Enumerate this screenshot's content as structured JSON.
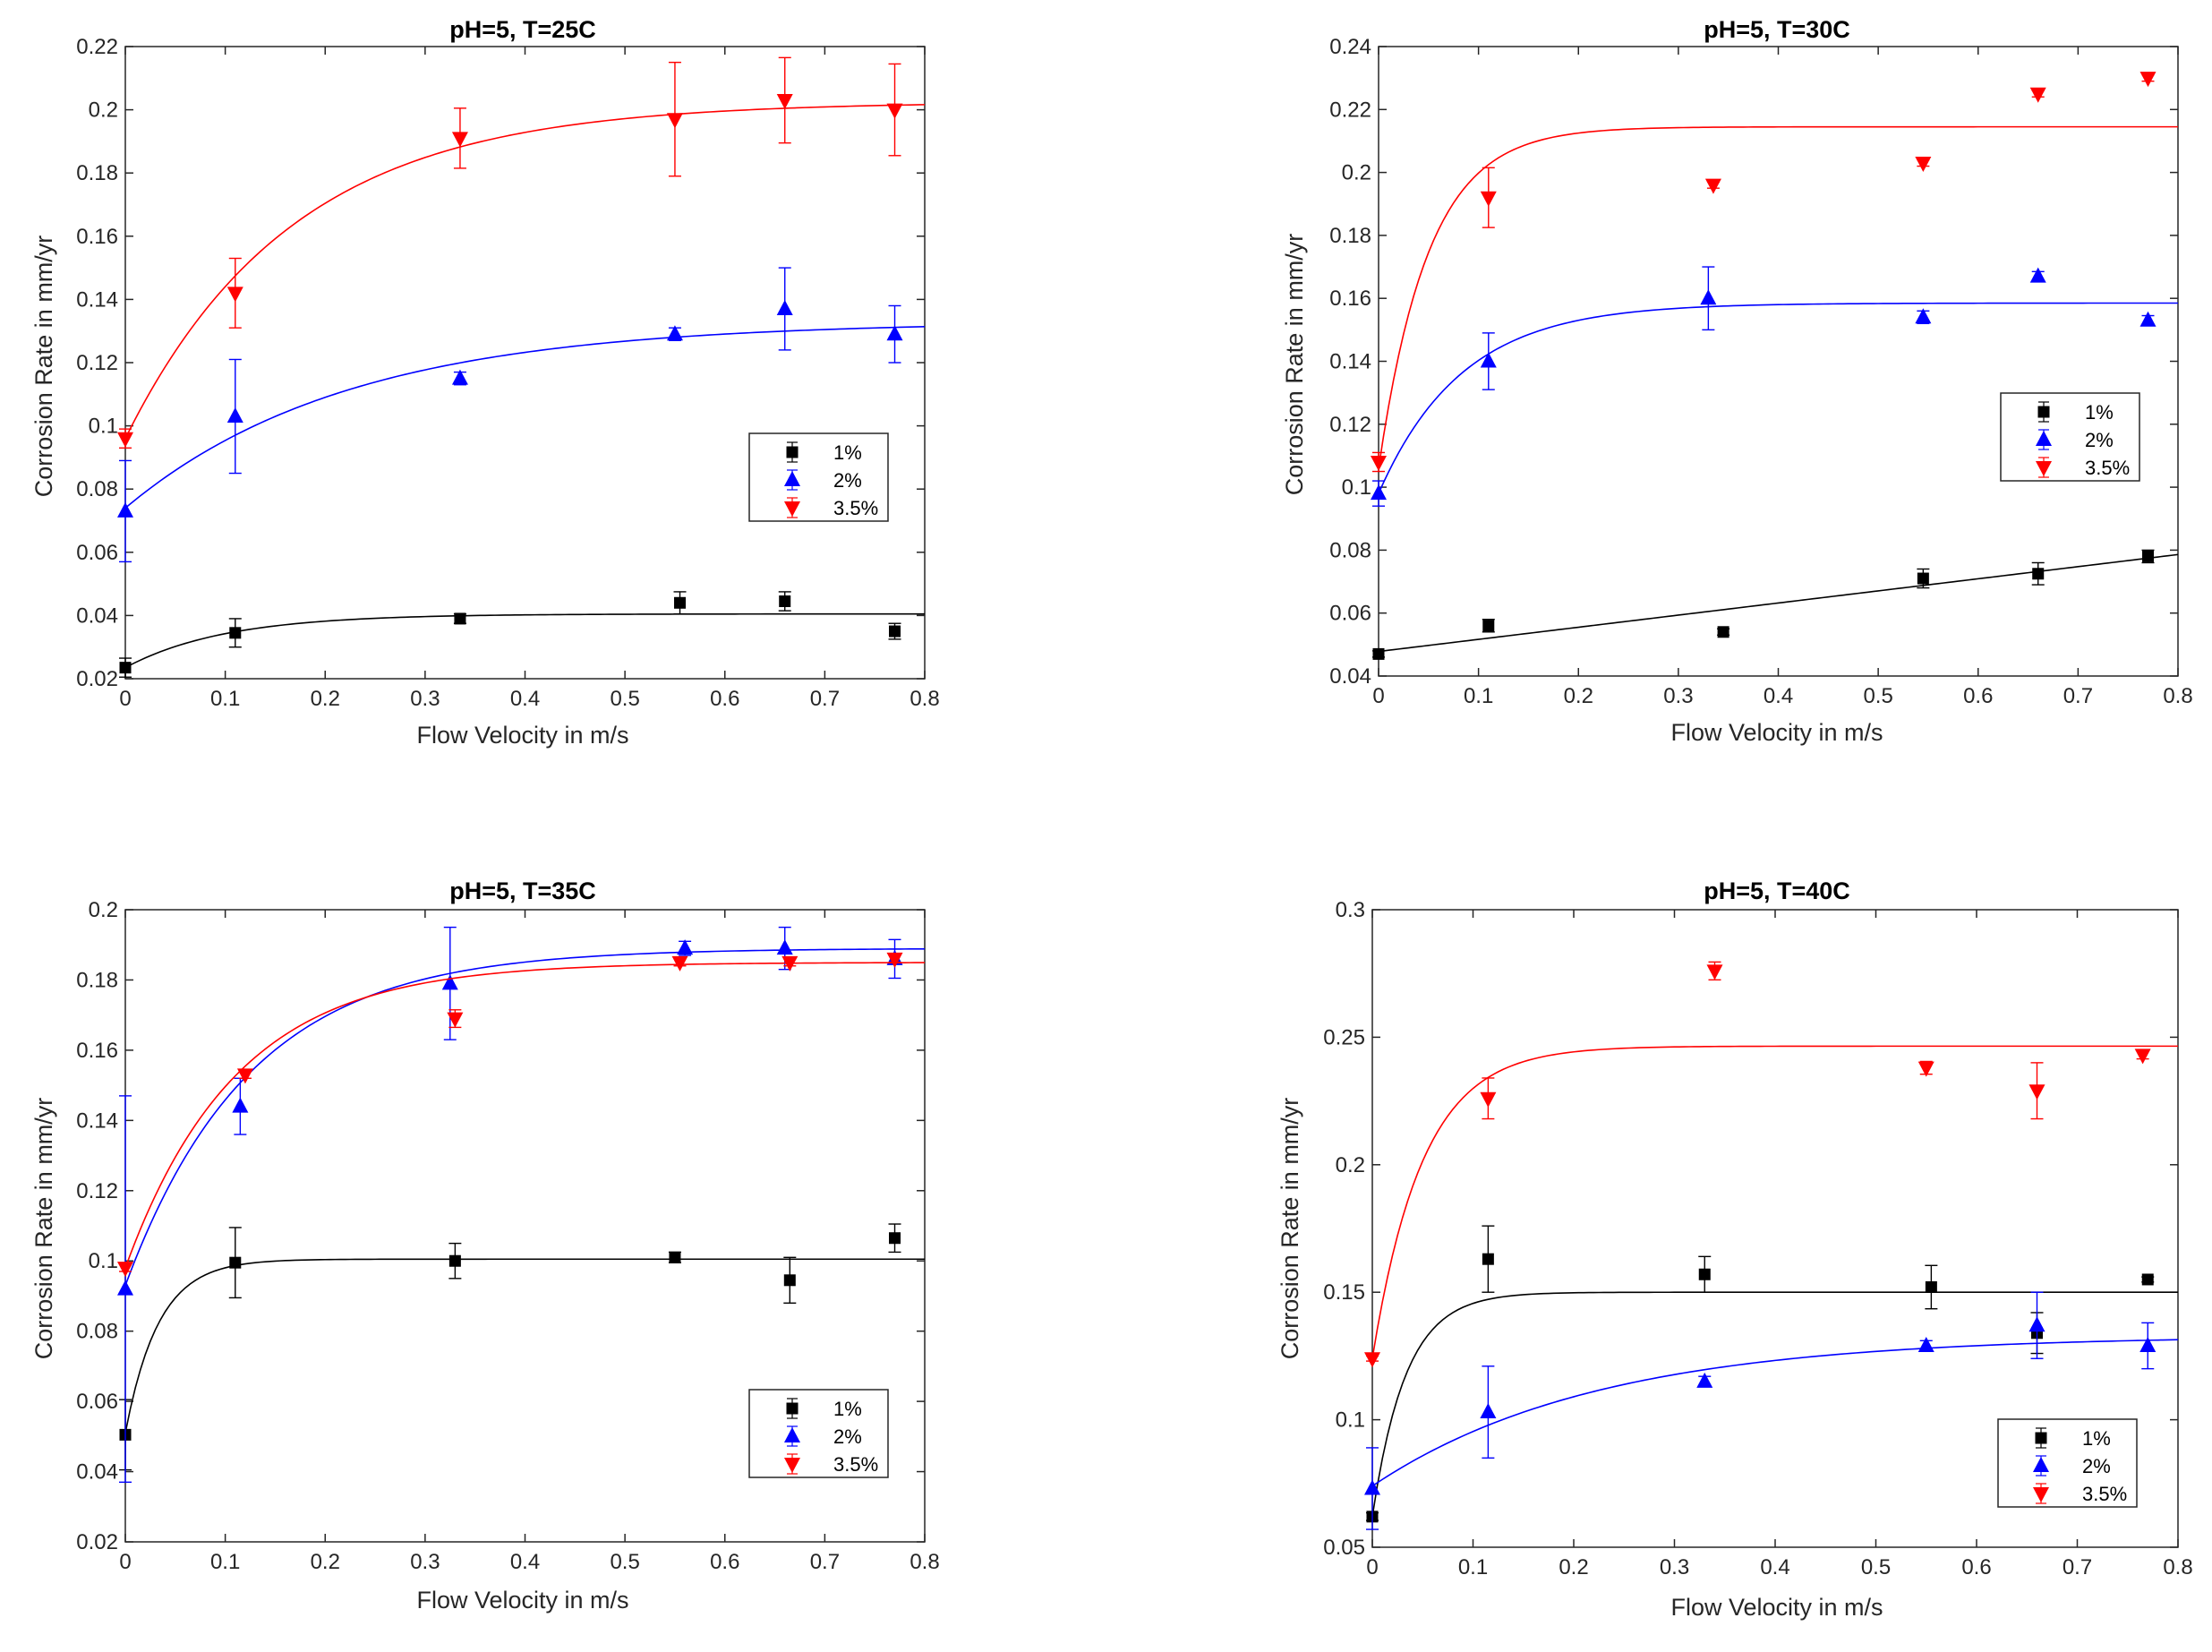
{
  "chart_data": [
    {
      "type": "scatter",
      "title": "pH=5, T=25C",
      "xlabel": "Flow Velocity in m/s",
      "ylabel": "Corrosion Rate in mm/yr",
      "xlim": [
        0,
        0.8
      ],
      "ylim": [
        0.02,
        0.22
      ],
      "xticks": [
        0,
        0.1,
        0.2,
        0.3,
        0.4,
        0.5,
        0.6,
        0.7,
        0.8
      ],
      "yticks": [
        0.02,
        0.04,
        0.06,
        0.08,
        0.1,
        0.12,
        0.14,
        0.16,
        0.18,
        0.2,
        0.22
      ],
      "xtick_labels": [
        "0",
        "0.1",
        "0.2",
        "0.3",
        "0.4",
        "0.5",
        "0.6",
        "0.7",
        "0.8"
      ],
      "ytick_labels": [
        "0.02",
        "0.04",
        "0.06",
        "0.08",
        "0.1",
        "0.12",
        "0.14",
        "0.16",
        "0.18",
        "0.2",
        "0.22"
      ],
      "grid": false,
      "legend_position": "center-right",
      "series": [
        {
          "name": "1%",
          "color": "#000000",
          "marker": "square",
          "x": [
            0,
            0.11,
            0.335,
            0.555,
            0.66,
            0.77
          ],
          "y": [
            0.0235,
            0.0345,
            0.039,
            0.044,
            0.0445,
            0.035
          ],
          "err": [
            0.003,
            0.0045,
            0.0015,
            0.0035,
            0.003,
            0.0025
          ],
          "fit": {
            "a": 0.0405,
            "b": 0.017,
            "k": 10
          }
        },
        {
          "name": "2%",
          "color": "#0000ff",
          "marker": "triangle-up",
          "x": [
            0,
            0.11,
            0.335,
            0.55,
            0.66,
            0.77
          ],
          "y": [
            0.073,
            0.103,
            0.115,
            0.129,
            0.137,
            0.129
          ],
          "err": [
            0.016,
            0.018,
            0.002,
            0.002,
            0.013,
            0.009
          ],
          "fit": {
            "a": 0.133,
            "b": 0.059,
            "k": 4.5
          }
        },
        {
          "name": "3.5%",
          "color": "#ff0000",
          "marker": "triangle-down",
          "x": [
            0,
            0.11,
            0.335,
            0.55,
            0.66,
            0.77
          ],
          "y": [
            0.096,
            0.142,
            0.191,
            0.197,
            0.203,
            0.2
          ],
          "err": [
            0.003,
            0.011,
            0.0095,
            0.018,
            0.0135,
            0.0145
          ],
          "fit": {
            "a": 0.2025,
            "b": 0.1065,
            "k": 6
          }
        }
      ]
    },
    {
      "type": "scatter",
      "title": "pH=5, T=30C",
      "xlabel": "Flow Velocity in m/s",
      "ylabel": "Corrosion Rate in mm/yr",
      "xlim": [
        0,
        0.8
      ],
      "ylim": [
        0.04,
        0.24
      ],
      "xticks": [
        0,
        0.1,
        0.2,
        0.3,
        0.4,
        0.5,
        0.6,
        0.7,
        0.8
      ],
      "yticks": [
        0.04,
        0.06,
        0.08,
        0.1,
        0.12,
        0.14,
        0.16,
        0.18,
        0.2,
        0.22,
        0.24
      ],
      "xtick_labels": [
        "0",
        "0.1",
        "0.2",
        "0.3",
        "0.4",
        "0.5",
        "0.6",
        "0.7",
        "0.8"
      ],
      "ytick_labels": [
        "0.04",
        "0.06",
        "0.08",
        "0.1",
        "0.12",
        "0.14",
        "0.16",
        "0.18",
        "0.2",
        "0.22",
        "0.24"
      ],
      "grid": false,
      "legend_position": "center-right",
      "series": [
        {
          "name": "1%",
          "color": "#000000",
          "marker": "square",
          "x": [
            0,
            0.11,
            0.345,
            0.545,
            0.66,
            0.77
          ],
          "y": [
            0.047,
            0.056,
            0.054,
            0.071,
            0.0725,
            0.078
          ],
          "err": [
            0.001,
            0.002,
            0.001,
            0.003,
            0.0035,
            0.002
          ],
          "fit": {
            "a": 0.0478,
            "m": 0.0385
          }
        },
        {
          "name": "2%",
          "color": "#0000ff",
          "marker": "triangle-up",
          "x": [
            0,
            0.11,
            0.33,
            0.545,
            0.66,
            0.77
          ],
          "y": [
            0.098,
            0.14,
            0.16,
            0.154,
            0.167,
            0.153
          ],
          "err": [
            0.004,
            0.009,
            0.01,
            0.002,
            0.0015,
            0.0015
          ],
          "fit": {
            "a": 0.1585,
            "b": 0.0605,
            "k": 12
          }
        },
        {
          "name": "3.5%",
          "color": "#ff0000",
          "marker": "triangle-down",
          "x": [
            0,
            0.11,
            0.335,
            0.545,
            0.66,
            0.77
          ],
          "y": [
            0.108,
            0.192,
            0.196,
            0.203,
            0.225,
            0.23
          ],
          "err": [
            0.003,
            0.0095,
            0.001,
            0.001,
            0.001,
            0.001
          ],
          "fit": {
            "a": 0.2145,
            "b": 0.1085,
            "k": 20
          }
        }
      ]
    },
    {
      "type": "scatter",
      "title": "pH=5, T=35C",
      "xlabel": "Flow Velocity in m/s",
      "ylabel": "Corrosion Rate in mm/yr",
      "xlim": [
        0,
        0.8
      ],
      "ylim": [
        0.02,
        0.2
      ],
      "xticks": [
        0,
        0.1,
        0.2,
        0.3,
        0.4,
        0.5,
        0.6,
        0.7,
        0.8
      ],
      "yticks": [
        0.02,
        0.04,
        0.06,
        0.08,
        0.1,
        0.12,
        0.14,
        0.16,
        0.18,
        0.2
      ],
      "xtick_labels": [
        "0",
        "0.1",
        "0.2",
        "0.3",
        "0.4",
        "0.5",
        "0.6",
        "0.7",
        "0.8"
      ],
      "ytick_labels": [
        "0.02",
        "0.04",
        "0.06",
        "0.08",
        "0.1",
        "0.12",
        "0.14",
        "0.16",
        "0.18",
        "0.2"
      ],
      "grid": false,
      "legend_position": "bottom-right",
      "series": [
        {
          "name": "1%",
          "color": "#000000",
          "marker": "square",
          "x": [
            0,
            0.11,
            0.33,
            0.55,
            0.665,
            0.77
          ],
          "y": [
            0.0505,
            0.0995,
            0.1,
            0.101,
            0.0945,
            0.1065
          ],
          "err": [
            0.01,
            0.01,
            0.005,
            0.0015,
            0.0065,
            0.004
          ],
          "fit": {
            "a": 0.1005,
            "b": 0.0495,
            "k": 30
          }
        },
        {
          "name": "2%",
          "color": "#0000ff",
          "marker": "triangle-up",
          "x": [
            0,
            0.115,
            0.325,
            0.56,
            0.66,
            0.77
          ],
          "y": [
            0.092,
            0.144,
            0.179,
            0.189,
            0.189,
            0.186
          ],
          "err": [
            0.055,
            0.008,
            0.016,
            0.002,
            0.006,
            0.0055
          ],
          "fit": {
            "a": 0.189,
            "b": 0.096,
            "k": 8
          }
        },
        {
          "name": "3.5%",
          "color": "#ff0000",
          "marker": "triangle-down",
          "x": [
            0,
            0.12,
            0.33,
            0.555,
            0.665,
            0.77
          ],
          "y": [
            0.098,
            0.153,
            0.169,
            0.185,
            0.185,
            0.186
          ],
          "err": [
            0.001,
            0.001,
            0.0025,
            0.001,
            0.001,
            0.001
          ],
          "fit": {
            "a": 0.185,
            "b": 0.087,
            "k": 9
          }
        }
      ]
    },
    {
      "type": "scatter",
      "title": "pH=5, T=40C",
      "xlabel": "Flow Velocity in m/s",
      "ylabel": "Corrosion Rate in mm/yr",
      "xlim": [
        0,
        0.8
      ],
      "ylim": [
        0.05,
        0.3
      ],
      "xticks": [
        0,
        0.1,
        0.2,
        0.3,
        0.4,
        0.5,
        0.6,
        0.7,
        0.8
      ],
      "yticks": [
        0.05,
        0.1,
        0.15,
        0.2,
        0.25,
        0.3
      ],
      "xtick_labels": [
        "0",
        "0.1",
        "0.2",
        "0.3",
        "0.4",
        "0.5",
        "0.6",
        "0.7",
        "0.8"
      ],
      "ytick_labels": [
        "0.05",
        "0.1",
        "0.15",
        "0.2",
        "0.25",
        "0.3"
      ],
      "grid": false,
      "legend_position": "bottom-right",
      "series": [
        {
          "name": "1%",
          "color": "#000000",
          "marker": "square",
          "x": [
            0,
            0.115,
            0.33,
            0.555,
            0.66,
            0.77
          ],
          "y": [
            0.062,
            0.163,
            0.157,
            0.152,
            0.134,
            0.155
          ],
          "err": [
            0.0015,
            0.013,
            0.007,
            0.0085,
            0.008,
            0.001
          ],
          "fit": {
            "a": 0.15,
            "b": 0.088,
            "k": 30
          }
        },
        {
          "name": "2%",
          "color": "#0000ff",
          "marker": "triangle-up",
          "x": [
            0,
            0.115,
            0.33,
            0.55,
            0.66,
            0.77
          ],
          "y": [
            0.073,
            0.103,
            0.115,
            0.129,
            0.137,
            0.129
          ],
          "err": [
            0.016,
            0.018,
            0.002,
            0.002,
            0.013,
            0.009
          ],
          "fit": {
            "a": 0.133,
            "b": 0.059,
            "k": 4.5
          }
        },
        {
          "name": "3.5%",
          "color": "#ff0000",
          "marker": "triangle-down",
          "x": [
            0,
            0.115,
            0.34,
            0.55,
            0.66,
            0.765
          ],
          "y": [
            0.124,
            0.226,
            0.276,
            0.238,
            0.229,
            0.243
          ],
          "err": [
            0.001,
            0.008,
            0.0035,
            0.0025,
            0.011,
            0.0015
          ],
          "fit": {
            "a": 0.2465,
            "b": 0.1225,
            "k": 20
          }
        }
      ]
    }
  ]
}
